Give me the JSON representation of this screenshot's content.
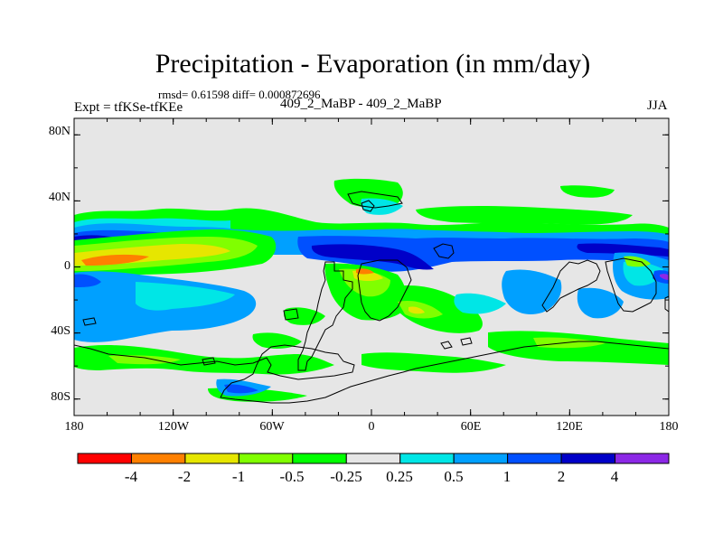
{
  "title": "Precipitation - Evaporation (in mm/day)",
  "stats": "rmsd= 0.61598 diff= 0.000872696",
  "experiment_label": "Expt = tfKSe-tfKEe",
  "experiment_names": "409_2_MaBP - 409_2_MaBP",
  "season": "JJA",
  "map": {
    "projection": "cylindrical-equidistant",
    "lon_range": [
      -180,
      180
    ],
    "lat_range": [
      -90,
      90
    ],
    "y_axis_labels": [
      "80N",
      "40N",
      "0",
      "40S",
      "80S"
    ],
    "y_axis_values": [
      80,
      40,
      0,
      -40,
      -80
    ],
    "x_axis_labels": [
      "180",
      "120W",
      "60W",
      "0",
      "60E",
      "120E",
      "180"
    ],
    "x_axis_values": [
      -180,
      -120,
      -60,
      0,
      60,
      120,
      180
    ]
  },
  "colorbar": {
    "labels": [
      "-4",
      "-2",
      "-1",
      "-0.5",
      "-0.25",
      "0.25",
      "0.5",
      "1",
      "2",
      "4"
    ],
    "colors": [
      "#ff0000",
      "#ff8000",
      "#e6e600",
      "#80ff00",
      "#00ff00",
      "#e6e6e6",
      "#00e6e6",
      "#00a0ff",
      "#0050ff",
      "#0000c8",
      "#8c28e6"
    ]
  },
  "colors": {
    "background_field": "#e6e6e6",
    "red": "#ff0000",
    "orange": "#ff8000",
    "yellow": "#e6e600",
    "yellow_green": "#80ff00",
    "green": "#00ff00",
    "cyan": "#00e6e6",
    "light_blue": "#00a0ff",
    "blue": "#0050ff",
    "dark_blue": "#0000c8",
    "purple": "#8c28e6"
  }
}
